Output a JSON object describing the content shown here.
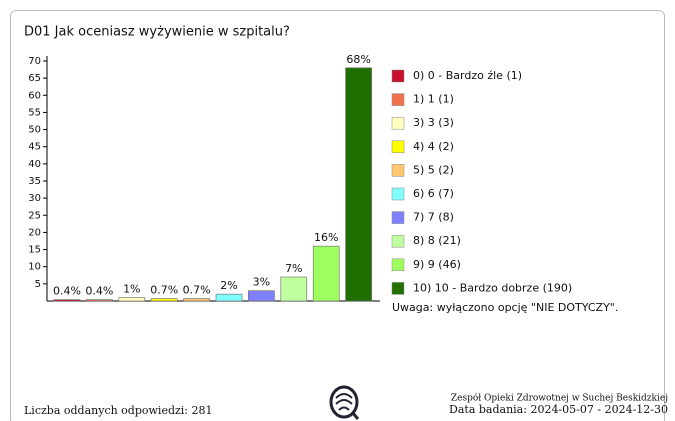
{
  "chart_data": {
    "type": "bar",
    "title": "D01 Jak oceniasz wyżywienie w szpitalu?",
    "categories": [
      "0) 0 - Bardzo źle (1)",
      "1) 1 (1)",
      "3) 3 (3)",
      "4) 4 (2)",
      "5) 5 (2)",
      "6) 6 (7)",
      "7) 7 (8)",
      "8) 8 (21)",
      "9) 9 (46)",
      "10) 10 - Bardzo dobrze (190)"
    ],
    "values": [
      0.4,
      0.4,
      1,
      0.7,
      0.7,
      2,
      3,
      7,
      16,
      68
    ],
    "value_labels": [
      "0.4%",
      "0.4%",
      "1%",
      "0.7%",
      "0.7%",
      "2%",
      "3%",
      "7%",
      "16%",
      "68%"
    ],
    "colors": [
      "#c8102e",
      "#f0704f",
      "#ffffc0",
      "#ffff00",
      "#ffc870",
      "#80ffff",
      "#8080ff",
      "#c0ffa0",
      "#a0ff60",
      "#1f7000"
    ],
    "ylim": [
      0,
      70
    ],
    "yticks": [
      5,
      10,
      15,
      20,
      25,
      30,
      35,
      40,
      45,
      50,
      55,
      60,
      65,
      70
    ],
    "legend": "right",
    "note": "Uwaga: wyłączono opcję \"NIE DOTYCZY\".",
    "footer_left": "Liczba oddanych odpowiedzi: 281",
    "footer_right_1": "Zespół Opieki Zdrowotnej w Suchej Beskidzkiej",
    "footer_right_2": "Data badania: 2024-05-07 - 2024-12-30"
  }
}
